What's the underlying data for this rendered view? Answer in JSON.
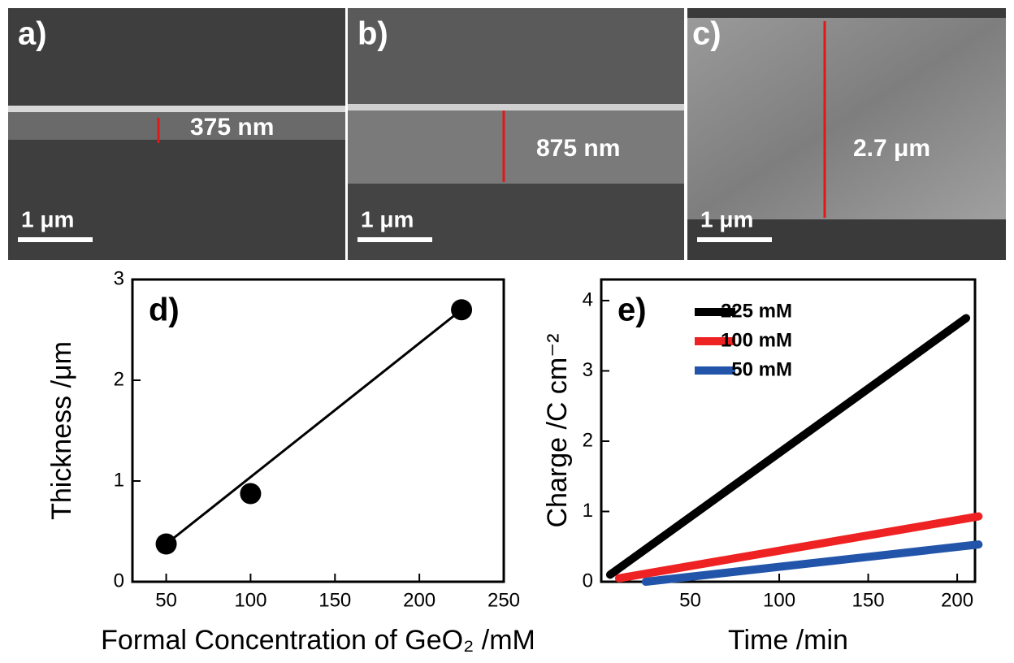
{
  "panels": [
    {
      "label": "a)",
      "measurement": "375 nm",
      "scale_bar": "1 μm"
    },
    {
      "label": "b)",
      "measurement": "875 nm",
      "scale_bar": "1 μm"
    },
    {
      "label": "c)",
      "measurement": "2.7 μm",
      "scale_bar": "1 μm"
    }
  ],
  "chart_data": [
    {
      "type": "scatter",
      "annotation": "d)",
      "xlabel": "Formal Concentration of GeO₂ /mM",
      "ylabel": "Thickness /μm",
      "x": [
        50,
        100,
        225
      ],
      "values": [
        0.375,
        0.875,
        2.7
      ],
      "color": "#000000",
      "trend_line": true,
      "xlim": [
        30,
        250
      ],
      "xticks": [
        50,
        100,
        150,
        200,
        250
      ],
      "ylim": [
        0,
        3
      ],
      "yticks": [
        0,
        1,
        2,
        3
      ]
    },
    {
      "type": "line",
      "annotation": "e)",
      "xlabel": "Time /min",
      "ylabel": "Charge /C cm⁻²",
      "series": [
        {
          "name": "225 mM",
          "color": "#000000",
          "x": [
            5,
            205
          ],
          "values": [
            0.1,
            3.75
          ]
        },
        {
          "name": "100 mM",
          "color": "#ee2222",
          "x": [
            10,
            212
          ],
          "values": [
            0.05,
            0.93
          ]
        },
        {
          "name": "50 mM",
          "color": "#2255aa",
          "x": [
            25,
            212
          ],
          "values": [
            0,
            0.53
          ]
        }
      ],
      "legend": "upper left",
      "xlim": [
        0,
        210
      ],
      "xticks": [
        50,
        100,
        150,
        200
      ],
      "ylim": [
        0,
        4.3
      ],
      "yticks": [
        0,
        1,
        2,
        3,
        4
      ]
    }
  ]
}
